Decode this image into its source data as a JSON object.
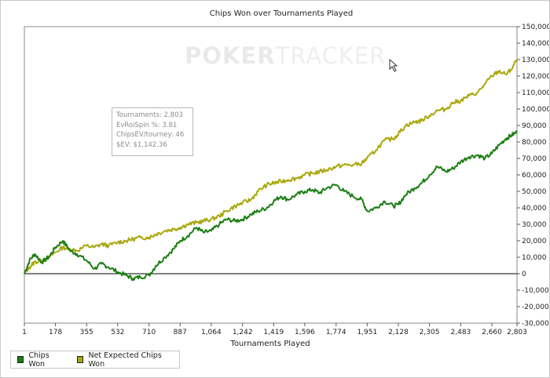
{
  "chart_data": {
    "type": "line",
    "title": "Chips Won over Tournaments Played",
    "xlabel": "Tournaments Played",
    "ylabel": "",
    "watermark": {
      "part1": "PO",
      "part2": "KER",
      "part3": "TRACKER"
    },
    "x_ticks": [
      "1",
      "178",
      "355",
      "532",
      "710",
      "887",
      "1,064",
      "1,242",
      "1,419",
      "1,596",
      "1,774",
      "1,951",
      "2,128",
      "2,305",
      "2,483",
      "2,660",
      "2,803"
    ],
    "xlim": [
      1,
      2803
    ],
    "y_ticks": [
      150000,
      140000,
      130000,
      120000,
      110000,
      100000,
      90000,
      80000,
      70000,
      60000,
      50000,
      40000,
      30000,
      20000,
      10000,
      0,
      -10000,
      -20000,
      -30000
    ],
    "y_tick_labels": [
      "150,000",
      "140,000",
      "130,000",
      "120,000",
      "110,000",
      "100,000",
      "90,000",
      "80,000",
      "70,000",
      "60,000",
      "50,000",
      "40,000",
      "30,000",
      "20,000",
      "10,000",
      "0",
      "-10,000",
      "-20,000",
      "-30,000"
    ],
    "ylim": [
      -30000,
      150000
    ],
    "y_axis_position": "right",
    "grid": false,
    "legend_position": "bottom-left",
    "colors": {
      "chips_won": "#1a7f12",
      "net_expected": "#aaa80e"
    },
    "series": [
      {
        "name": "Chips Won",
        "key": "chips_won",
        "x": [
          1,
          30,
          60,
          100,
          140,
          178,
          220,
          260,
          300,
          355,
          400,
          440,
          480,
          532,
          580,
          620,
          660,
          710,
          750,
          800,
          850,
          887,
          930,
          980,
          1020,
          1064,
          1110,
          1150,
          1200,
          1242,
          1290,
          1330,
          1380,
          1419,
          1460,
          1500,
          1550,
          1596,
          1640,
          1680,
          1720,
          1774,
          1820,
          1870,
          1920,
          1951,
          2000,
          2050,
          2100,
          2128,
          2170,
          2220,
          2260,
          2305,
          2350,
          2400,
          2440,
          2483,
          2530,
          2580,
          2620,
          2660,
          2700,
          2740,
          2770,
          2803
        ],
        "y": [
          0,
          8000,
          12000,
          7000,
          10000,
          16000,
          20000,
          14000,
          12000,
          8000,
          3000,
          6000,
          4000,
          1000,
          -1000,
          -3000,
          -2000,
          -1000,
          5000,
          10000,
          15000,
          20000,
          23000,
          28000,
          25000,
          26000,
          30000,
          33000,
          32000,
          33000,
          36000,
          38000,
          40000,
          44000,
          47000,
          45000,
          48000,
          50000,
          51000,
          49000,
          52000,
          54000,
          50000,
          47000,
          45000,
          38000,
          40000,
          44000,
          41000,
          42000,
          48000,
          52000,
          55000,
          60000,
          65000,
          62000,
          64000,
          68000,
          71000,
          72000,
          70000,
          73000,
          78000,
          82000,
          84000,
          86000
        ]
      },
      {
        "name": "Net Expected Chips Won",
        "key": "net_expected",
        "x": [
          1,
          30,
          60,
          100,
          140,
          178,
          220,
          260,
          300,
          355,
          400,
          440,
          480,
          532,
          580,
          620,
          660,
          710,
          750,
          800,
          850,
          887,
          930,
          980,
          1020,
          1064,
          1110,
          1150,
          1200,
          1242,
          1290,
          1330,
          1380,
          1419,
          1460,
          1500,
          1550,
          1596,
          1640,
          1680,
          1720,
          1774,
          1820,
          1870,
          1920,
          1951,
          2000,
          2050,
          2100,
          2128,
          2170,
          2220,
          2260,
          2305,
          2350,
          2400,
          2440,
          2483,
          2530,
          2580,
          2620,
          2660,
          2700,
          2740,
          2770,
          2803
        ],
        "y": [
          0,
          4000,
          7000,
          8000,
          10000,
          13000,
          16000,
          15000,
          14000,
          17000,
          16000,
          18000,
          17000,
          19000,
          20000,
          21000,
          22000,
          22000,
          24000,
          26000,
          27000,
          28000,
          30000,
          31000,
          32000,
          33000,
          35000,
          38000,
          41000,
          43000,
          45000,
          50000,
          54000,
          55000,
          56000,
          57000,
          58000,
          60000,
          61000,
          62000,
          63000,
          65000,
          66000,
          66000,
          67000,
          70000,
          75000,
          81000,
          82000,
          85000,
          90000,
          92000,
          93000,
          96000,
          99000,
          100000,
          104000,
          105000,
          108000,
          110000,
          115000,
          120000,
          123000,
          121000,
          124000,
          130000
        ]
      }
    ],
    "tooltip": [
      "Tournaments: 2,803",
      "EvRoiSpin %: 3.81",
      "ChipsEV/tourney: 46",
      "$EV: $1,142.36"
    ]
  }
}
